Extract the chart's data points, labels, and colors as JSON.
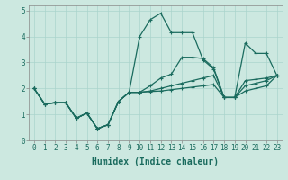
{
  "xlabel": "Humidex (Indice chaleur)",
  "ylabel": "",
  "xlim": [
    -0.5,
    23.5
  ],
  "ylim": [
    0,
    5.2
  ],
  "xticks": [
    0,
    1,
    2,
    3,
    4,
    5,
    6,
    7,
    8,
    9,
    10,
    11,
    12,
    13,
    14,
    15,
    16,
    17,
    18,
    19,
    20,
    21,
    22,
    23
  ],
  "yticks": [
    0,
    1,
    2,
    3,
    4,
    5
  ],
  "background_color": "#cce8e0",
  "line_color": "#1a6b5e",
  "lines": [
    {
      "x": [
        0,
        1,
        2,
        3,
        4,
        5,
        6,
        7,
        8,
        9,
        10,
        11,
        12,
        13,
        14,
        15,
        16,
        17,
        18,
        19,
        20,
        21,
        22,
        23
      ],
      "y": [
        2.0,
        1.4,
        1.45,
        1.45,
        0.85,
        1.05,
        0.45,
        0.6,
        1.5,
        1.85,
        4.0,
        4.65,
        4.9,
        4.15,
        4.15,
        4.15,
        3.1,
        2.75,
        1.65,
        1.65,
        3.75,
        3.35,
        3.35,
        2.5
      ]
    },
    {
      "x": [
        0,
        1,
        2,
        3,
        4,
        5,
        6,
        7,
        8,
        9,
        10,
        11,
        12,
        13,
        14,
        15,
        16,
        17,
        18,
        19,
        20,
        21,
        22,
        23
      ],
      "y": [
        2.0,
        1.4,
        1.45,
        1.45,
        0.85,
        1.05,
        0.45,
        0.6,
        1.5,
        1.85,
        1.85,
        2.1,
        2.4,
        2.55,
        3.2,
        3.2,
        3.15,
        2.8,
        1.65,
        1.65,
        2.3,
        2.35,
        2.4,
        2.5
      ]
    },
    {
      "x": [
        0,
        1,
        2,
        3,
        4,
        5,
        6,
        7,
        8,
        9,
        10,
        11,
        12,
        13,
        14,
        15,
        16,
        17,
        18,
        19,
        20,
        21,
        22,
        23
      ],
      "y": [
        2.0,
        1.4,
        1.45,
        1.45,
        0.85,
        1.05,
        0.45,
        0.6,
        1.5,
        1.85,
        1.85,
        1.9,
        2.0,
        2.1,
        2.2,
        2.3,
        2.4,
        2.5,
        1.65,
        1.65,
        2.1,
        2.2,
        2.3,
        2.5
      ]
    },
    {
      "x": [
        0,
        1,
        2,
        3,
        4,
        5,
        6,
        7,
        8,
        9,
        10,
        11,
        12,
        13,
        14,
        15,
        16,
        17,
        18,
        19,
        20,
        21,
        22,
        23
      ],
      "y": [
        2.0,
        1.4,
        1.45,
        1.45,
        0.85,
        1.05,
        0.45,
        0.6,
        1.5,
        1.85,
        1.85,
        1.88,
        1.9,
        1.95,
        2.0,
        2.05,
        2.1,
        2.15,
        1.65,
        1.65,
        1.9,
        2.0,
        2.1,
        2.5
      ]
    }
  ],
  "marker": "+",
  "markersize": 3.5,
  "linewidth": 0.9,
  "label_fontsize": 7,
  "tick_fontsize": 5.5,
  "grid_color": "#aad4cc",
  "spine_color": "#888888"
}
